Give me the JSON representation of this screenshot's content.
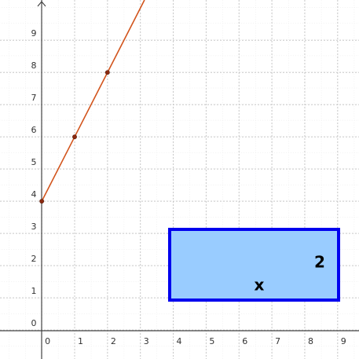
{
  "chart_data": {
    "type": "line",
    "x": [
      0,
      1,
      2
    ],
    "series": [
      {
        "color": "#d2541c",
        "values": [
          4,
          6,
          8
        ]
      }
    ],
    "xlim": [
      -1.27,
      9.65
    ],
    "ylim": [
      -0.9,
      10.25
    ],
    "xticks": [
      0,
      1,
      2,
      3,
      4,
      5,
      6,
      7,
      8,
      9
    ],
    "yticks": [
      0,
      1,
      2,
      3,
      4,
      5,
      6,
      7,
      8,
      9
    ],
    "grid": true,
    "annotations": [
      "2",
      "x"
    ]
  }
}
